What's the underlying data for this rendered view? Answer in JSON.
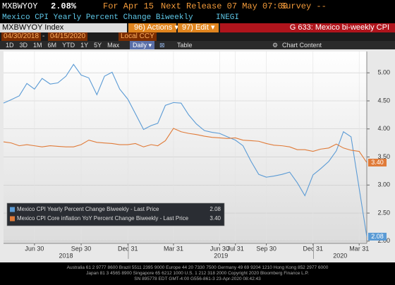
{
  "header": {
    "ticker": "MXBWYOY",
    "last": "2.08%",
    "for_label": "For Apr 15",
    "next_release": "Next Release 07 May 07:00",
    "survey": "Survey --",
    "description": "Mexico CPI Yearly Percent Change Biweekly",
    "source": "INEGI"
  },
  "toolbar": {
    "security": "MXBWYOY Index",
    "actions": "96) Actions",
    "edit": "97) Edit",
    "page_title": "G 633: Mexico bi-weekly CPI",
    "start_date": "04/30/2018",
    "end_date": "04/15/2020",
    "currency": "Local CCY",
    "periods": [
      "1D",
      "3D",
      "1M",
      "6M",
      "YTD",
      "1Y",
      "5Y",
      "Max"
    ],
    "frequency": "Daily",
    "table": "Table",
    "chart_content": "Chart Content"
  },
  "chart_data": {
    "type": "line",
    "x": [
      "2018-04-30",
      "2018-05-15",
      "2018-05-31",
      "2018-06-15",
      "2018-06-30",
      "2018-07-15",
      "2018-07-31",
      "2018-08-15",
      "2018-08-31",
      "2018-09-15",
      "2018-09-30",
      "2018-10-15",
      "2018-10-31",
      "2018-11-15",
      "2018-11-30",
      "2018-12-15",
      "2018-12-31",
      "2019-01-15",
      "2019-01-31",
      "2019-02-15",
      "2019-02-28",
      "2019-03-15",
      "2019-03-31",
      "2019-04-15",
      "2019-04-30",
      "2019-05-15",
      "2019-05-31",
      "2019-06-15",
      "2019-06-30",
      "2019-07-15",
      "2019-07-31",
      "2019-08-15",
      "2019-08-31",
      "2019-09-15",
      "2019-09-30",
      "2019-10-15",
      "2019-10-31",
      "2019-11-15",
      "2019-11-30",
      "2019-12-15",
      "2019-12-31",
      "2020-01-15",
      "2020-01-31",
      "2020-02-15",
      "2020-02-29",
      "2020-03-15",
      "2020-03-31",
      "2020-04-15"
    ],
    "series": [
      {
        "name": "Mexico CPI Yearly Percent Change Biweekly - Last Price",
        "color": "#5b9bd5",
        "last_label": "2.08",
        "values": [
          4.46,
          4.52,
          4.59,
          4.81,
          4.71,
          4.9,
          4.8,
          4.82,
          4.94,
          5.15,
          4.96,
          4.91,
          4.61,
          4.94,
          5.01,
          4.71,
          4.53,
          4.27,
          3.99,
          4.06,
          4.1,
          4.42,
          4.47,
          4.46,
          4.25,
          4.09,
          3.97,
          3.94,
          3.92,
          3.86,
          3.8,
          3.7,
          3.42,
          3.19,
          3.14,
          3.16,
          3.19,
          3.23,
          3.04,
          2.81,
          3.18,
          3.29,
          3.42,
          3.61,
          3.95,
          3.86,
          2.94,
          2.08
        ]
      },
      {
        "name": "Mexico CPI Core inflation YoY Percent Change Biweekly - Last Price",
        "color": "#e07b39",
        "last_label": "3.40",
        "values": [
          3.77,
          3.75,
          3.7,
          3.72,
          3.7,
          3.68,
          3.7,
          3.69,
          3.68,
          3.68,
          3.72,
          3.8,
          3.76,
          3.75,
          3.74,
          3.72,
          3.72,
          3.74,
          3.68,
          3.72,
          3.7,
          3.79,
          4.01,
          3.95,
          3.92,
          3.9,
          3.87,
          3.85,
          3.84,
          3.83,
          3.84,
          3.8,
          3.79,
          3.78,
          3.74,
          3.71,
          3.7,
          3.68,
          3.63,
          3.63,
          3.6,
          3.64,
          3.66,
          3.73,
          3.66,
          3.62,
          3.6,
          3.4
        ]
      }
    ],
    "xlim": [
      "2018-04-30",
      "2020-04-15"
    ],
    "xticks": [
      {
        "value": "2018-06-30",
        "label": "Jun 30"
      },
      {
        "value": "2018-09-30",
        "label": "Sep 30"
      },
      {
        "value": "2018-12-31",
        "label": "Dec 31"
      },
      {
        "value": "2019-03-31",
        "label": "Mar 31"
      },
      {
        "value": "2019-06-30",
        "label": "Jun 30"
      },
      {
        "value": "2019-07-31",
        "label": "Jul 31"
      },
      {
        "value": "2019-09-30",
        "label": "Sep 30"
      },
      {
        "value": "2019-12-31",
        "label": "Dec 31"
      },
      {
        "value": "2020-03-31",
        "label": "Mar 31"
      }
    ],
    "year_labels": [
      2018,
      2019,
      2020
    ],
    "ylim": [
      1.96,
      5.38
    ],
    "yticks": [
      {
        "value": 2,
        "label": "2.00"
      },
      {
        "value": 2.5,
        "label": "2.50"
      },
      {
        "value": 3,
        "label": "3.00"
      },
      {
        "value": 3.5,
        "label": "3.50"
      },
      {
        "value": 4,
        "label": "4.00"
      },
      {
        "value": 4.5,
        "label": "4.50"
      },
      {
        "value": 5,
        "label": "5.00"
      }
    ],
    "grid": true,
    "legend": "bottom-left"
  },
  "footer": [
    "Australia 61 2 9777 8600 Brazil 5511 2395 9000 Europe 44 20 7330 7500 Germany 49 69 9204 1210 Hong Kong 852 2977 6000",
    "Japan 81 3 4565 8900        Singapore 65 6212 1000        U.S. 1 212 318 2000        Copyright 2020 Bloomberg Finance L.P.",
    "SN 895778 EDT  GMT-4:00 G556-861-3 23-Apr-2020 08:42:43"
  ]
}
